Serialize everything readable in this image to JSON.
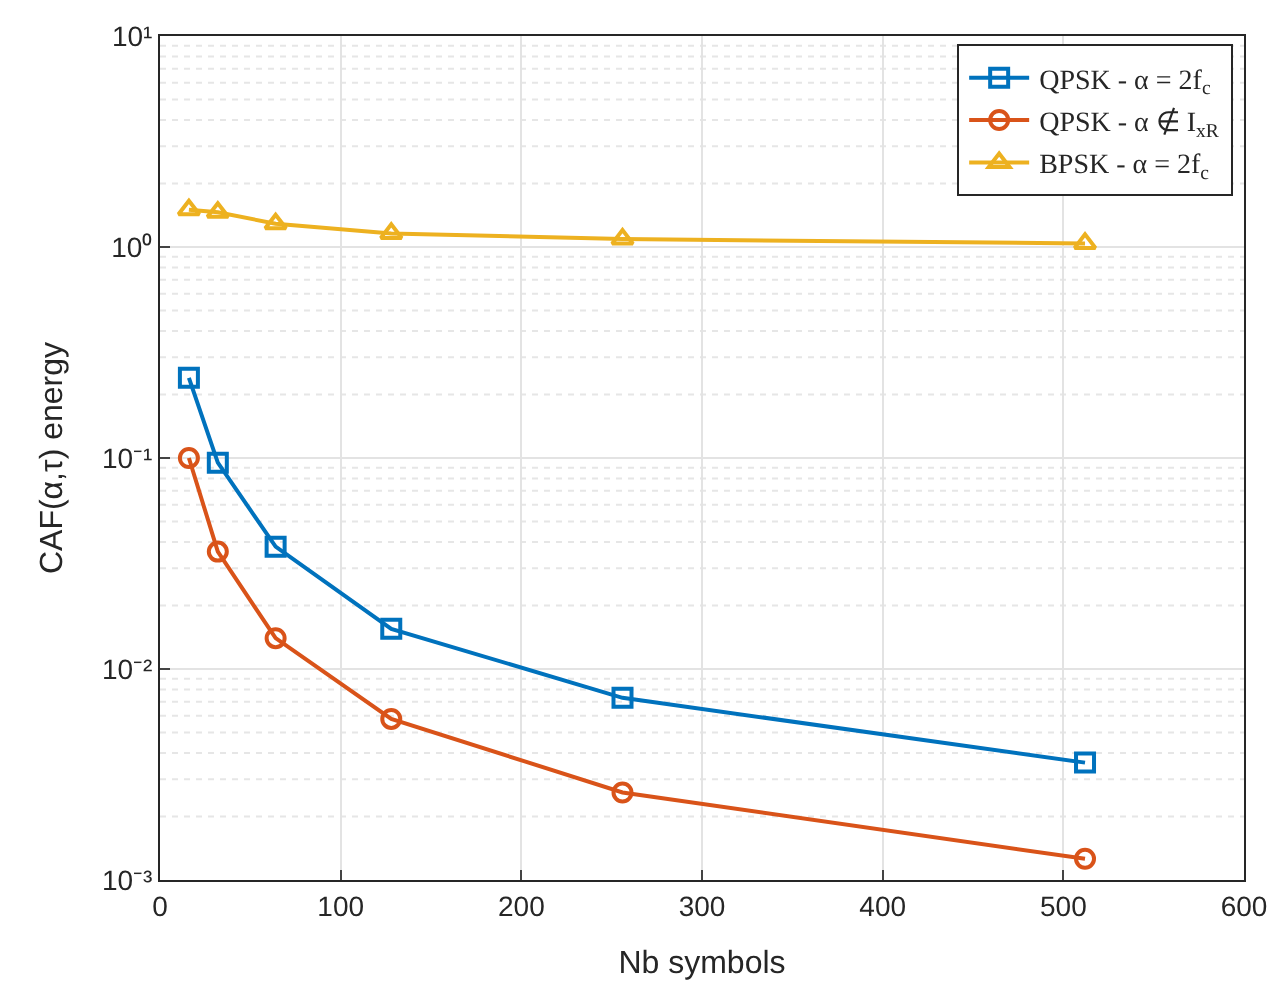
{
  "chart_data": {
    "type": "line",
    "xlabel": "Nb symbols",
    "ylabel": "CAF(α,τ) energy",
    "log": "y",
    "x": [
      16,
      32,
      64,
      128,
      256,
      512
    ],
    "xlim": [
      0,
      600
    ],
    "xticks": [
      0,
      100,
      200,
      300,
      400,
      500,
      600
    ],
    "ylim": [
      0.001,
      10
    ],
    "yticks": [
      {
        "value": 0.001,
        "label": "10⁻³"
      },
      {
        "value": 0.01,
        "label": "10⁻²"
      },
      {
        "value": 0.1,
        "label": "10⁻¹"
      },
      {
        "value": 1,
        "label": "10⁰"
      },
      {
        "value": 10,
        "label": "10¹"
      }
    ],
    "grid": true,
    "legend": "top right",
    "series": [
      {
        "name": "QPSK - α = 2f$_{c}$",
        "color": "#0072bd",
        "marker": "square",
        "values": [
          0.24,
          0.095,
          0.038,
          0.0155,
          0.0073,
          0.0036
        ]
      },
      {
        "name": "QPSK - α ∉ I$_{xR}$",
        "color": "#d95319",
        "marker": "circle",
        "values": [
          0.1,
          0.036,
          0.014,
          0.0058,
          0.0026,
          0.00126
        ]
      },
      {
        "name": "BPSK - α = 2f$_{c}$",
        "color": "#edb120",
        "marker": "triangle",
        "values": [
          1.5,
          1.46,
          1.29,
          1.16,
          1.09,
          1.04
        ]
      }
    ]
  }
}
